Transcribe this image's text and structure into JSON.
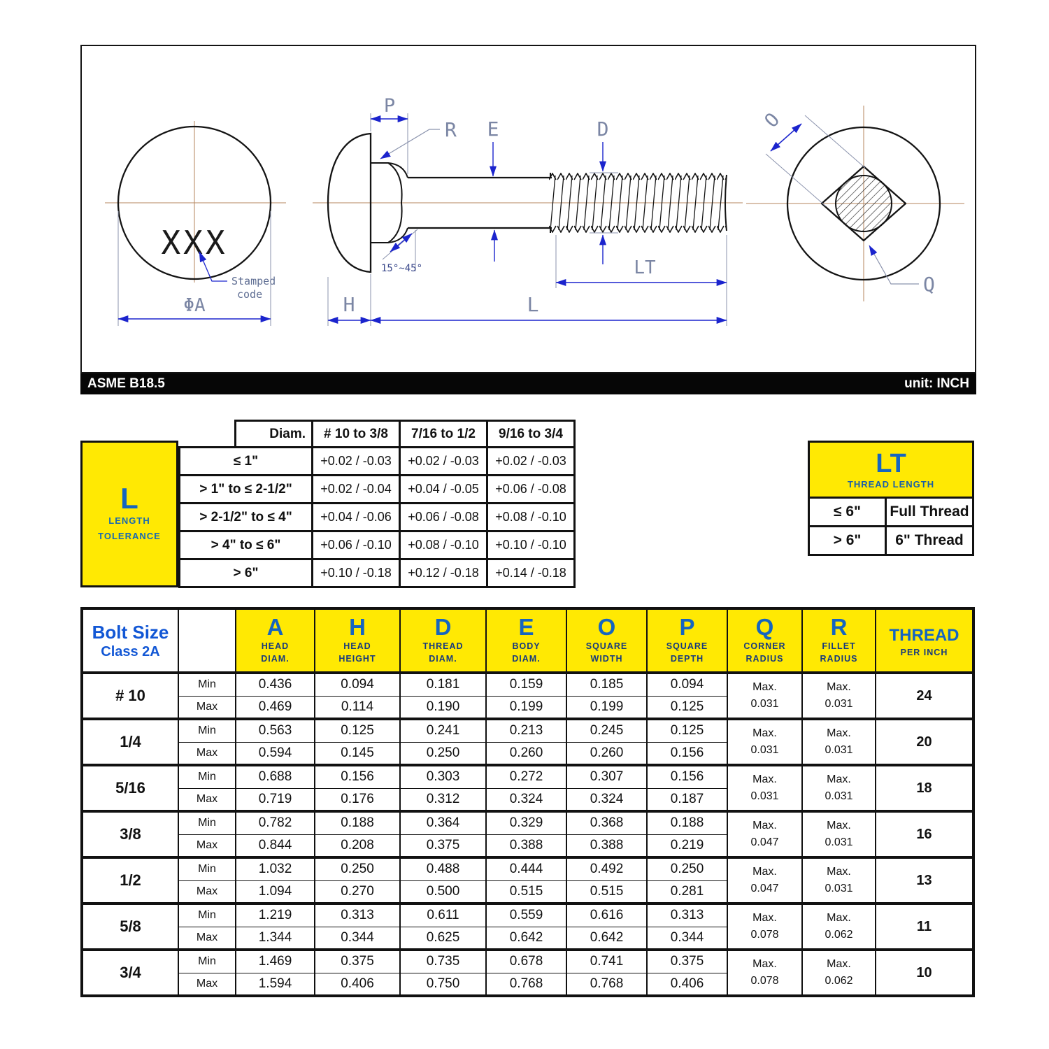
{
  "titlebar": {
    "standard": "ASME B18.5",
    "unit": "unit: INCH"
  },
  "drawing": {
    "labels": {
      "stamp": "XXX",
      "stamped_1": "Stamped",
      "stamped_2": "code",
      "phi_a": "ΦA",
      "p": "P",
      "r": "R",
      "e": "E",
      "d": "D",
      "h": "H",
      "l": "L",
      "lt": "LT",
      "o": "O",
      "q": "Q",
      "angle": "15°~45°"
    },
    "colors": {
      "dimension_blue": "#1b24cd",
      "label_slate": "#7b86a4",
      "centerline": "#b4855e"
    }
  },
  "l_tolerance_table": {
    "corner": {
      "big": "L",
      "sub1": "LENGTH",
      "sub2": "TOLERANCE"
    },
    "header": [
      "Diam.",
      "# 10 to 3/8",
      "7/16 to 1/2",
      "9/16 to 3/4"
    ],
    "rows": [
      {
        "range": "≤ 1\"",
        "values": [
          "+0.02 / -0.03",
          "+0.02 / -0.03",
          "+0.02 / -0.03"
        ]
      },
      {
        "range": "> 1\" to ≤ 2-1/2\"",
        "values": [
          "+0.02 / -0.04",
          "+0.04 / -0.05",
          "+0.06 / -0.08"
        ]
      },
      {
        "range": "> 2-1/2\" to ≤ 4\"",
        "values": [
          "+0.04 / -0.06",
          "+0.06 / -0.08",
          "+0.08 / -0.10"
        ]
      },
      {
        "range": "> 4\" to ≤ 6\"",
        "values": [
          "+0.06 / -0.10",
          "+0.08 / -0.10",
          "+0.10 / -0.10"
        ]
      },
      {
        "range": "> 6\"",
        "values": [
          "+0.10 / -0.18",
          "+0.12 / -0.18",
          "+0.14 / -0.18"
        ]
      }
    ]
  },
  "lt_table": {
    "header": {
      "big": "LT",
      "sub": "THREAD LENGTH"
    },
    "rows": [
      {
        "cond": "≤ 6\"",
        "val": "Full Thread"
      },
      {
        "cond": "> 6\"",
        "val": "6\" Thread"
      }
    ]
  },
  "main_table": {
    "bolt_size_header": {
      "line1": "Bolt Size",
      "line2": "Class 2A"
    },
    "columns": [
      {
        "letter": "A",
        "sub1": "HEAD",
        "sub2": "DIAM."
      },
      {
        "letter": "H",
        "sub1": "HEAD",
        "sub2": "HEIGHT"
      },
      {
        "letter": "D",
        "sub1": "THREAD",
        "sub2": "DIAM."
      },
      {
        "letter": "E",
        "sub1": "BODY",
        "sub2": "DIAM."
      },
      {
        "letter": "O",
        "sub1": "SQUARE",
        "sub2": "WIDTH"
      },
      {
        "letter": "P",
        "sub1": "SQUARE",
        "sub2": "DEPTH"
      },
      {
        "letter": "Q",
        "sub1": "CORNER",
        "sub2": "RADIUS"
      },
      {
        "letter": "R",
        "sub1": "FILLET",
        "sub2": "RADIUS"
      }
    ],
    "thread_header": {
      "line1": "THREAD",
      "line2": "PER INCH"
    },
    "minmax": [
      "Min",
      "Max"
    ],
    "max_label": "Max.",
    "rows": [
      {
        "size": "# 10",
        "min": [
          "0.436",
          "0.094",
          "0.181",
          "0.159",
          "0.185",
          "0.094"
        ],
        "max": [
          "0.469",
          "0.114",
          "0.190",
          "0.199",
          "0.199",
          "0.125"
        ],
        "q": "0.031",
        "r": "0.031",
        "tpi": "24"
      },
      {
        "size": "1/4",
        "min": [
          "0.563",
          "0.125",
          "0.241",
          "0.213",
          "0.245",
          "0.125"
        ],
        "max": [
          "0.594",
          "0.145",
          "0.250",
          "0.260",
          "0.260",
          "0.156"
        ],
        "q": "0.031",
        "r": "0.031",
        "tpi": "20"
      },
      {
        "size": "5/16",
        "min": [
          "0.688",
          "0.156",
          "0.303",
          "0.272",
          "0.307",
          "0.156"
        ],
        "max": [
          "0.719",
          "0.176",
          "0.312",
          "0.324",
          "0.324",
          "0.187"
        ],
        "q": "0.031",
        "r": "0.031",
        "tpi": "18"
      },
      {
        "size": "3/8",
        "min": [
          "0.782",
          "0.188",
          "0.364",
          "0.329",
          "0.368",
          "0.188"
        ],
        "max": [
          "0.844",
          "0.208",
          "0.375",
          "0.388",
          "0.388",
          "0.219"
        ],
        "q": "0.047",
        "r": "0.031",
        "tpi": "16"
      },
      {
        "size": "1/2",
        "min": [
          "1.032",
          "0.250",
          "0.488",
          "0.444",
          "0.492",
          "0.250"
        ],
        "max": [
          "1.094",
          "0.270",
          "0.500",
          "0.515",
          "0.515",
          "0.281"
        ],
        "q": "0.047",
        "r": "0.031",
        "tpi": "13"
      },
      {
        "size": "5/8",
        "min": [
          "1.219",
          "0.313",
          "0.611",
          "0.559",
          "0.616",
          "0.313"
        ],
        "max": [
          "1.344",
          "0.344",
          "0.625",
          "0.642",
          "0.642",
          "0.344"
        ],
        "q": "0.078",
        "r": "0.062",
        "tpi": "11"
      },
      {
        "size": "3/4",
        "min": [
          "1.469",
          "0.375",
          "0.735",
          "0.678",
          "0.741",
          "0.375"
        ],
        "max": [
          "1.594",
          "0.406",
          "0.750",
          "0.768",
          "0.768",
          "0.406"
        ],
        "q": "0.078",
        "r": "0.062",
        "tpi": "10"
      }
    ]
  }
}
